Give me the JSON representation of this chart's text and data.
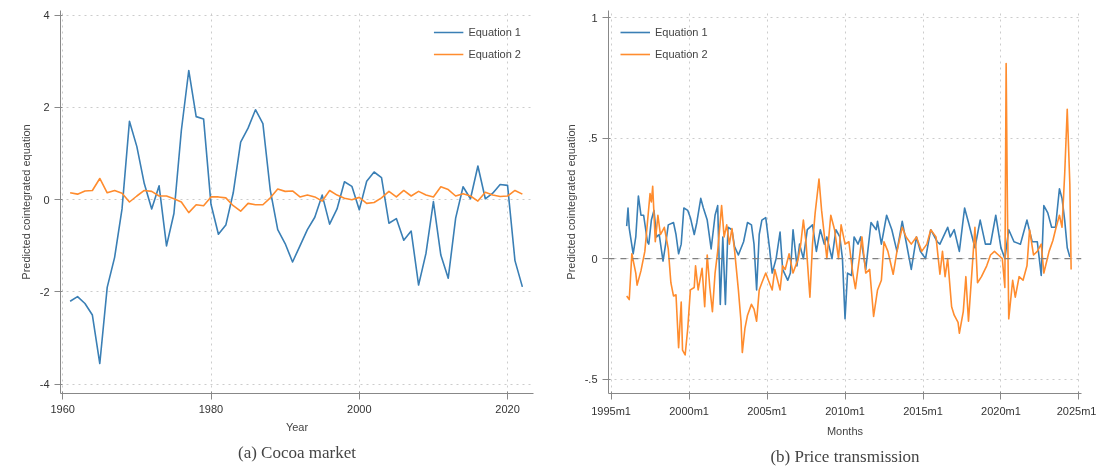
{
  "chart_data": [
    {
      "type": "line",
      "title": "(a) Cocoa market",
      "xlabel": "Year",
      "ylabel": "Predicted cointegrated equation",
      "x": [
        1961,
        1962,
        1963,
        1964,
        1965,
        1966,
        1967,
        1968,
        1969,
        1970,
        1971,
        1972,
        1973,
        1974,
        1975,
        1976,
        1977,
        1978,
        1979,
        1980,
        1981,
        1982,
        1983,
        1984,
        1985,
        1986,
        1987,
        1988,
        1989,
        1990,
        1991,
        1992,
        1993,
        1994,
        1995,
        1996,
        1997,
        1998,
        1999,
        2000,
        2001,
        2002,
        2003,
        2004,
        2005,
        2006,
        2007,
        2008,
        2009,
        2010,
        2011,
        2012,
        2013,
        2014,
        2015,
        2016,
        2017,
        2018,
        2019,
        2020,
        2021,
        2022
      ],
      "series": [
        {
          "name": "Equation 1",
          "color": "#3a7fb5",
          "values": [
            -2.2,
            -2.1,
            -2.25,
            -2.5,
            -3.55,
            -1.9,
            -1.25,
            -0.2,
            1.7,
            1.15,
            0.35,
            -0.2,
            0.3,
            -1.0,
            -0.3,
            1.5,
            2.8,
            1.8,
            1.75,
            -0.1,
            -0.75,
            -0.55,
            0.15,
            1.25,
            1.55,
            1.95,
            1.65,
            0.2,
            -0.65,
            -0.95,
            -1.35,
            -1.0,
            -0.65,
            -0.38,
            0.1,
            -0.53,
            -0.2,
            0.39,
            0.29,
            -0.22,
            0.4,
            0.6,
            0.48,
            -0.51,
            -0.41,
            -0.88,
            -0.68,
            -1.85,
            -1.16,
            -0.04,
            -1.2,
            -1.7,
            -0.4,
            0.28,
            0.02,
            0.73,
            0.02,
            0.14,
            0.33,
            0.31,
            -1.32,
            -1.89
          ]
        },
        {
          "name": "Equation 2",
          "color": "#ff8c2e",
          "values": [
            0.15,
            0.12,
            0.19,
            0.2,
            0.46,
            0.15,
            0.2,
            0.14,
            -0.05,
            0.08,
            0.2,
            0.18,
            0.08,
            0.08,
            0.02,
            -0.05,
            -0.28,
            -0.11,
            -0.13,
            0.06,
            0.06,
            0.04,
            -0.13,
            -0.25,
            -0.08,
            -0.11,
            -0.11,
            0.04,
            0.23,
            0.18,
            0.19,
            0.06,
            0.1,
            0.06,
            -0.03,
            0.2,
            0.1,
            0.03,
            0.0,
            0.05,
            -0.08,
            -0.06,
            0.04,
            0.18,
            0.06,
            0.2,
            0.08,
            0.18,
            0.1,
            0.06,
            0.28,
            0.22,
            0.08,
            0.13,
            0.08,
            -0.03,
            0.16,
            0.1,
            0.07,
            0.08,
            0.2,
            0.12
          ]
        }
      ],
      "xlim": [
        1959.7,
        2023.5
      ],
      "ylim": [
        -4.2,
        4.1
      ],
      "xticks": [
        1960,
        1980,
        2000,
        2020
      ],
      "yticks": [
        -4,
        -2,
        0,
        2,
        4
      ],
      "grid": true,
      "legend": "top right",
      "line_style": "solid"
    },
    {
      "type": "line",
      "title": "(b) Price transmission",
      "xlabel": "Months",
      "ylabel": "Predicted cointegrated equation",
      "series": [
        {
          "name": "Equation 1",
          "color": "#3a7fb5",
          "x": [
            "1996-01",
            "1996-02",
            "1996-03",
            "1996-06",
            "1996-08",
            "1996-10",
            "1996-12",
            "1997-02",
            "1997-05",
            "1997-06",
            "1997-08",
            "1997-10",
            "1997-12",
            "1998-02",
            "1998-05",
            "1998-07",
            "1998-09",
            "1999-01",
            "1999-03",
            "1999-05",
            "1999-07",
            "1999-09",
            "1999-12",
            "2000-02",
            "2000-05",
            "2000-07",
            "2000-10",
            "2000-12",
            "2001-03",
            "2001-06",
            "2001-09",
            "2001-11",
            "2002-01",
            "2002-03",
            "2002-05",
            "2002-07",
            "2002-10",
            "2002-12",
            "2003-03",
            "2003-07",
            "2003-10",
            "2004-01",
            "2004-03",
            "2004-05",
            "2004-07",
            "2004-09",
            "2004-12",
            "2005-03",
            "2005-05",
            "2005-08",
            "2005-11",
            "2006-01",
            "2006-05",
            "2006-07",
            "2006-09",
            "2006-12",
            "2007-02",
            "2007-05",
            "2007-08",
            "2007-12",
            "2008-03",
            "2008-06",
            "2008-09",
            "2008-11",
            "2009-03",
            "2009-06",
            "2009-09",
            "2009-11",
            "2010-01",
            "2010-03",
            "2010-06",
            "2010-08",
            "2010-11",
            "2011-01",
            "2011-05",
            "2011-09",
            "2012-01",
            "2012-02",
            "2012-05",
            "2012-09",
            "2013-01",
            "2013-05",
            "2013-09",
            "2013-12",
            "2014-04",
            "2014-08",
            "2014-11",
            "2015-03",
            "2015-07",
            "2015-12",
            "2016-02",
            "2016-08",
            "2016-10",
            "2017-01",
            "2017-05",
            "2017-09",
            "2017-12",
            "2018-05",
            "2018-09",
            "2019-01",
            "2019-05",
            "2019-09",
            "2020-01",
            "2020-04",
            "2020-07",
            "2020-11",
            "2021-04",
            "2021-09",
            "2022-01",
            "2022-05",
            "2022-08",
            "2022-10",
            "2023-01",
            "2023-04",
            "2023-07",
            "2023-10",
            "2023-12",
            "2024-02",
            "2024-04",
            "2024-06"
          ],
          "values": [
            0.135,
            0.21,
            0.125,
            0.02,
            0.09,
            0.26,
            0.18,
            0.18,
            0.07,
            0.06,
            0.16,
            0.2,
            0.09,
            0.1,
            -0.01,
            0.06,
            0.14,
            0.15,
            0.1,
            0.02,
            0.06,
            0.21,
            0.2,
            0.17,
            0.1,
            0.15,
            0.25,
            0.21,
            0.16,
            0.04,
            0.18,
            0.22,
            -0.19,
            0.09,
            -0.19,
            0.13,
            0.12,
            0.05,
            0.015,
            0.07,
            0.15,
            0.14,
            0.06,
            -0.13,
            0.1,
            0.16,
            0.17,
            0.04,
            -0.06,
            0.0,
            0.11,
            -0.045,
            -0.09,
            -0.06,
            0.12,
            -0.03,
            0.06,
            0.0,
            0.12,
            0.14,
            0.03,
            0.12,
            0.06,
            0.09,
            0.0,
            0.12,
            0.09,
            0.0,
            -0.25,
            -0.06,
            -0.07,
            0.09,
            0.06,
            0.09,
            -0.045,
            0.15,
            0.12,
            0.155,
            0.06,
            0.18,
            0.12,
            0.03,
            0.155,
            0.07,
            -0.045,
            0.09,
            0.03,
            0.0,
            0.12,
            0.07,
            0.06,
            0.13,
            0.09,
            0.12,
            0.03,
            0.21,
            0.15,
            0.045,
            0.16,
            0.06,
            0.06,
            0.18,
            0.045,
            0.0,
            0.12,
            0.07,
            0.06,
            0.16,
            0.07,
            0.07,
            -0.07,
            0.22,
            0.19,
            0.13,
            0.13,
            0.29,
            0.25,
            0.16,
            0.045,
            0.007
          ]
        },
        {
          "name": "Equation 2",
          "color": "#ff8c2e",
          "x": [
            "1996-01",
            "1996-03",
            "1996-05",
            "1996-08",
            "1996-09",
            "1996-12",
            "1997-03",
            "1997-05",
            "1997-07",
            "1997-08",
            "1997-09",
            "1997-11",
            "1998-01",
            "1998-03",
            "1998-06",
            "1998-09",
            "1998-11",
            "1999-01",
            "1999-03",
            "1999-05",
            "1999-07",
            "1999-08",
            "1999-10",
            "1999-12",
            "2000-02",
            "2000-05",
            "2000-06",
            "2000-08",
            "2000-11",
            "2001-01",
            "2001-03",
            "2001-05",
            "2001-07",
            "2001-09",
            "2001-11",
            "2002-02",
            "2002-04",
            "2002-06",
            "2002-08",
            "2002-10",
            "2002-12",
            "2003-03",
            "2003-05",
            "2003-06",
            "2003-08",
            "2003-10",
            "2004-01",
            "2004-03",
            "2004-05",
            "2004-07",
            "2004-09",
            "2004-12",
            "2005-02",
            "2005-05",
            "2005-07",
            "2005-11",
            "2006-01",
            "2006-03",
            "2006-06",
            "2006-09",
            "2007-01",
            "2007-03",
            "2007-05",
            "2007-07",
            "2007-10",
            "2007-12",
            "2008-02",
            "2008-05",
            "2008-07",
            "2008-09",
            "2008-11",
            "2009-02",
            "2009-05",
            "2009-08",
            "2009-10",
            "2010-01",
            "2010-04",
            "2010-07",
            "2010-09",
            "2010-12",
            "2011-02",
            "2011-05",
            "2011-08",
            "2011-11",
            "2012-02",
            "2012-05",
            "2012-07",
            "2012-10",
            "2013-02",
            "2013-05",
            "2013-09",
            "2013-12",
            "2014-04",
            "2014-08",
            "2014-12",
            "2015-04",
            "2015-07",
            "2015-11",
            "2016-02",
            "2016-04",
            "2016-06",
            "2016-08",
            "2016-11",
            "2017-01",
            "2017-04",
            "2017-05",
            "2017-08",
            "2017-10",
            "2017-12",
            "2018-03",
            "2018-05",
            "2018-07",
            "2018-10",
            "2019-02",
            "2019-05",
            "2019-08",
            "2019-11",
            "2020-02",
            "2020-04",
            "2020-05",
            "2020-06",
            "2020-07",
            "2020-10",
            "2020-12",
            "2021-03",
            "2021-06",
            "2021-09",
            "2021-11",
            "2022-02",
            "2022-05",
            "2022-08",
            "2022-10",
            "2023-02",
            "2023-05",
            "2023-07",
            "2023-10",
            "2023-12",
            "2024-02",
            "2024-04",
            "2024-06",
            "2024-07"
          ],
          "values": [
            -0.155,
            -0.17,
            0.02,
            -0.06,
            -0.11,
            -0.05,
            0.03,
            0.15,
            0.27,
            0.235,
            0.3,
            0.07,
            0.18,
            0.1,
            0.13,
            0.04,
            -0.1,
            -0.155,
            -0.15,
            -0.37,
            -0.18,
            -0.38,
            -0.4,
            -0.29,
            -0.13,
            -0.12,
            -0.03,
            -0.13,
            -0.04,
            -0.2,
            0.015,
            -0.12,
            -0.22,
            -0.06,
            0.03,
            0.22,
            0.09,
            0.14,
            0.06,
            0.125,
            0.035,
            -0.13,
            -0.26,
            -0.39,
            -0.29,
            -0.235,
            -0.19,
            -0.21,
            -0.26,
            -0.13,
            -0.1,
            -0.06,
            -0.09,
            -0.13,
            -0.045,
            -0.13,
            -0.03,
            -0.045,
            0.02,
            -0.06,
            0.0,
            0.06,
            0.16,
            0.07,
            -0.16,
            0.06,
            0.19,
            0.33,
            0.2,
            0.1,
            0.0,
            0.18,
            0.12,
            0.0,
            0.14,
            0.06,
            0.07,
            -0.06,
            -0.125,
            0.0,
            0.09,
            -0.06,
            -0.045,
            -0.24,
            -0.13,
            -0.09,
            0.07,
            0.03,
            -0.065,
            0.03,
            0.13,
            0.09,
            0.06,
            0.09,
            0.03,
            0.06,
            0.12,
            0.09,
            -0.065,
            0.03,
            -0.075,
            0.0,
            -0.2,
            -0.235,
            -0.265,
            -0.31,
            -0.22,
            -0.075,
            -0.26,
            -0.03,
            0.13,
            -0.1,
            -0.075,
            -0.03,
            0.015,
            0.03,
            0.015,
            0.0,
            -0.12,
            0.81,
            0.2,
            -0.25,
            -0.09,
            -0.16,
            -0.075,
            -0.09,
            -0.03,
            0.12,
            0.015,
            0.03,
            0.06,
            -0.06,
            0.03,
            0.075,
            0.12,
            0.18,
            0.13,
            0.35,
            0.62,
            0.31,
            -0.045
          ]
        }
      ],
      "xlim": [
        "1994-11",
        "2025-03"
      ],
      "ylim": [
        -0.56,
        1.03
      ],
      "xticks": [
        {
          "value": "1995-01",
          "label": "1995m1"
        },
        {
          "value": "2000-01",
          "label": "2000m1"
        },
        {
          "value": "2005-01",
          "label": "2005m1"
        },
        {
          "value": "2010-01",
          "label": "2010m1"
        },
        {
          "value": "2015-01",
          "label": "2015m1"
        },
        {
          "value": "2020-01",
          "label": "2020m1"
        },
        {
          "value": "2025-01",
          "label": "2025m1"
        }
      ],
      "yticks": [
        {
          "value": -0.5,
          "label": "-.5"
        },
        0,
        {
          "value": 0.5,
          "label": ".5"
        },
        1
      ],
      "ref_lines": [
        {
          "axis": "y",
          "value": 0,
          "color": "#808080",
          "line_style": "dashed"
        }
      ],
      "grid": true,
      "legend": "top left",
      "line_style": "solid"
    }
  ]
}
